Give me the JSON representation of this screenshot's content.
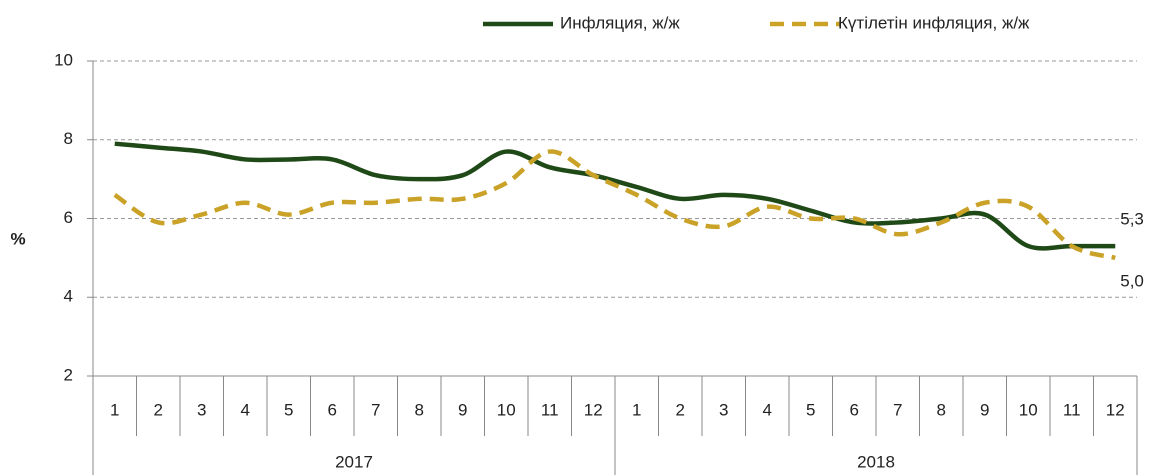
{
  "chart_data": {
    "type": "line",
    "y_label": "%",
    "categories": [
      "1",
      "2",
      "3",
      "4",
      "5",
      "6",
      "7",
      "8",
      "9",
      "10",
      "11",
      "12",
      "1",
      "2",
      "3",
      "4",
      "5",
      "6",
      "7",
      "8",
      "9",
      "10",
      "11",
      "12"
    ],
    "groups": [
      "2017",
      "2018"
    ],
    "series": [
      {
        "name": "Инфляция, ж/ж",
        "color": "#1f4a18",
        "dash": false,
        "values": [
          7.9,
          7.8,
          7.7,
          7.5,
          7.5,
          7.5,
          7.1,
          7.0,
          7.1,
          7.7,
          7.3,
          7.1,
          6.8,
          6.5,
          6.6,
          6.5,
          6.2,
          5.9,
          5.9,
          6.0,
          6.1,
          5.3,
          5.3,
          5.3
        ],
        "value_labels": [
          null,
          null,
          null,
          null,
          null,
          null,
          null,
          null,
          null,
          null,
          null,
          null,
          null,
          null,
          null,
          null,
          null,
          null,
          null,
          null,
          null,
          null,
          null,
          "5,3"
        ]
      },
      {
        "name": "Күтілетін инфляция, ж/ж",
        "color": "#c9a227",
        "dash": true,
        "values": [
          6.6,
          5.9,
          6.1,
          6.4,
          6.1,
          6.4,
          6.4,
          6.5,
          6.5,
          6.9,
          7.7,
          7.1,
          6.6,
          6.0,
          5.8,
          6.3,
          6.0,
          6.0,
          5.6,
          5.9,
          6.4,
          6.3,
          5.3,
          5.0
        ],
        "value_labels": [
          null,
          null,
          null,
          null,
          null,
          null,
          null,
          null,
          null,
          null,
          null,
          null,
          null,
          null,
          null,
          null,
          null,
          null,
          null,
          null,
          null,
          null,
          null,
          "5,0"
        ]
      }
    ],
    "ylim": [
      2,
      10
    ],
    "yticks": [
      2,
      4,
      6,
      8,
      10
    ],
    "grid": true,
    "legend": "top-right"
  }
}
